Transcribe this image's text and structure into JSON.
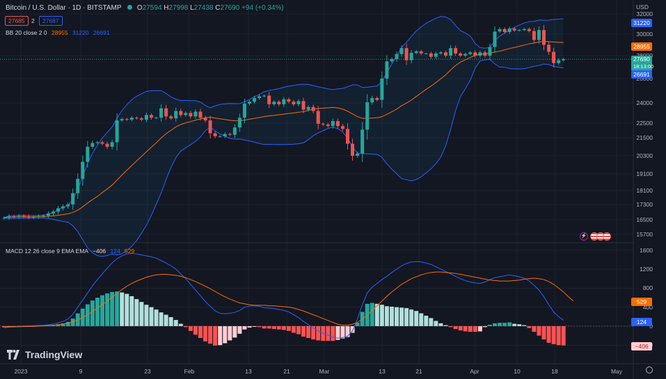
{
  "header": {
    "title": "Bitcoin / U.S. Dollar · 1D · BITSTAMP",
    "o_label": "O",
    "o": "27594",
    "h_label": "H",
    "h": "27998",
    "l_label": "L",
    "l": "27438",
    "c_label": "C",
    "c": "27690",
    "change": "+94 (+0.34%)",
    "bid": "27685",
    "spread": "2",
    "ask": "27687",
    "currency": "USD"
  },
  "bb_legend": {
    "name": "BB 20 close 2 0",
    "basis": "28955",
    "upper": "31220",
    "lower": "26691"
  },
  "macd_legend": {
    "name": "MACD 12 26 close 9 EMA EMA",
    "hist": "−406",
    "macd": "124",
    "signal": "529"
  },
  "price_tags": {
    "upper": "31220",
    "basis": "28955",
    "last": "27690",
    "countdown": "18:13:00",
    "lower": "26691",
    "macd_signal": "529",
    "macd": "124",
    "hist": "−406"
  },
  "brand": "TradingView",
  "colors": {
    "up": "#26a69a",
    "down": "#ef5350",
    "basis": "#ff6d00",
    "bands": "#2962ff",
    "macd": "#2962ff",
    "signal": "#ff6d00"
  },
  "chart_data": [
    {
      "type": "candlestick",
      "title": "Bitcoin / U.S. Dollar · 1D · BITSTAMP",
      "y_ticks": [
        32000,
        30000,
        28000,
        26000,
        24000,
        22500,
        21500,
        20300,
        19100,
        18100,
        17300,
        16500,
        15700
      ],
      "x_ticks": [
        "2023",
        "9",
        "23",
        "Feb",
        "13",
        "21",
        "Mar",
        "13",
        "21",
        "Apr",
        "10",
        "18",
        "May"
      ],
      "closes": [
        16600,
        16680,
        16640,
        16700,
        16680,
        16620,
        16650,
        16690,
        16710,
        16830,
        16920,
        17100,
        17200,
        17300,
        17950,
        18800,
        19900,
        20900,
        21150,
        21200,
        21100,
        20900,
        21200,
        22700,
        22800,
        22750,
        22900,
        22850,
        22750,
        23100,
        22900,
        22900,
        23600,
        23000,
        22850,
        23400,
        23100,
        23250,
        23000,
        23350,
        22900,
        22700,
        21800,
        21600,
        21600,
        21750,
        21700,
        22200,
        22900,
        23950,
        24100,
        24400,
        24550,
        24600,
        23900,
        24100,
        23900,
        24300,
        24100,
        23900,
        24150,
        23500,
        23700,
        23400,
        22450,
        22400,
        22300,
        22650,
        22300,
        22100,
        21100,
        20300,
        20450,
        22050,
        24050,
        24400,
        24250,
        26000,
        27500,
        27700,
        28150,
        28700,
        27600,
        28250,
        28400,
        28200,
        28200,
        27900,
        28200,
        28300,
        28000,
        28700,
        28200,
        28000,
        28150,
        28300,
        28000,
        28300,
        28000,
        28800,
        30250,
        30500,
        30200,
        30550,
        30350,
        30400,
        30500,
        30300,
        29450,
        30400,
        29000,
        28350,
        27350,
        27600,
        27690
      ],
      "bb": {
        "basis_last": 28955,
        "upper_last": 31220,
        "lower_last": 26691
      },
      "last_price": 27690
    },
    {
      "type": "bar",
      "title": "MACD 12 26 close 9 EMA EMA",
      "y_ticks": [
        1600,
        1200,
        800,
        400,
        0,
        -400
      ],
      "series": [
        {
          "name": "MACD",
          "values": [
            -35,
            -20,
            -15,
            -5,
            0,
            5,
            10,
            15,
            20,
            30,
            45,
            70,
            100,
            150,
            250,
            400,
            550,
            700,
            850,
            980,
            1100,
            1220,
            1330,
            1420,
            1480,
            1520,
            1530,
            1520,
            1500,
            1480,
            1460,
            1430,
            1380,
            1330,
            1270,
            1200,
            1100,
            1000,
            880,
            760,
            640,
            520,
            420,
            320,
            270,
            260,
            270,
            290,
            330,
            400,
            420,
            430,
            420,
            390,
            380,
            370,
            350,
            330,
            300,
            240,
            180,
            100,
            30,
            -40,
            -100,
            -150,
            -190,
            -230,
            -250,
            -240,
            -210,
            -100,
            150,
            450,
            700,
            820,
            900,
            980,
            1050,
            1130,
            1200,
            1270,
            1320,
            1350,
            1360,
            1350,
            1330,
            1300,
            1250,
            1200,
            1150,
            1100,
            1050,
            1000,
            960,
            930,
            910,
            900,
            930,
            980,
            1020,
            1040,
            1060,
            1080,
            1060,
            1040,
            1010,
            950,
            860,
            760,
            620,
            450,
            300,
            200,
            124
          ]
        },
        {
          "name": "Signal",
          "values": [
            -10,
            -12,
            -13,
            -12,
            -10,
            -8,
            -5,
            0,
            5,
            10,
            18,
            28,
            42,
            60,
            90,
            130,
            180,
            240,
            310,
            380,
            450,
            530,
            610,
            690,
            770,
            840,
            900,
            950,
            990,
            1030,
            1060,
            1080,
            1090,
            1090,
            1080,
            1070,
            1050,
            1020,
            980,
            940,
            890,
            840,
            790,
            730,
            670,
            620,
            570,
            530,
            490,
            470,
            450,
            440,
            440,
            440,
            430,
            430,
            420,
            410,
            400,
            380,
            350,
            320,
            280,
            240,
            200,
            160,
            120,
            80,
            40,
            20,
            20,
            40,
            80,
            150,
            230,
            330,
            430,
            530,
            630,
            720,
            800,
            880,
            940,
            1000,
            1040,
            1080,
            1110,
            1130,
            1140,
            1140,
            1130,
            1120,
            1110,
            1090,
            1070,
            1050,
            1030,
            1010,
            990,
            970,
            960,
            950,
            950,
            950,
            960,
            970,
            990,
            1000,
            1010,
            1000,
            980,
            940,
            880,
            800,
            720,
            620,
            529
          ]
        },
        {
          "name": "Histogram",
          "values": [
            -25,
            -8,
            -2,
            7,
            10,
            13,
            15,
            15,
            15,
            20,
            27,
            42,
            58,
            90,
            160,
            270,
            370,
            460,
            540,
            600,
            650,
            690,
            720,
            730,
            710,
            680,
            630,
            570,
            510,
            450,
            400,
            350,
            290,
            240,
            190,
            130,
            50,
            -20,
            -100,
            -180,
            -250,
            -320,
            -370,
            -410,
            -400,
            -360,
            -300,
            -240,
            -160,
            -70,
            -30,
            -10,
            -20,
            -50,
            -50,
            -60,
            -70,
            -80,
            -100,
            -140,
            -170,
            -220,
            -250,
            -280,
            -300,
            -310,
            -310,
            -310,
            -290,
            -260,
            -230,
            -140,
            70,
            300,
            470,
            490,
            470,
            450,
            420,
            410,
            400,
            390,
            380,
            350,
            320,
            270,
            220,
            170,
            110,
            60,
            20,
            -20,
            -60,
            -90,
            -110,
            -120,
            -120,
            -110,
            -20,
            30,
            60,
            70,
            70,
            80,
            50,
            40,
            20,
            -40,
            -120,
            -200,
            -280,
            -350,
            -380,
            -400,
            -406
          ]
        }
      ]
    }
  ]
}
